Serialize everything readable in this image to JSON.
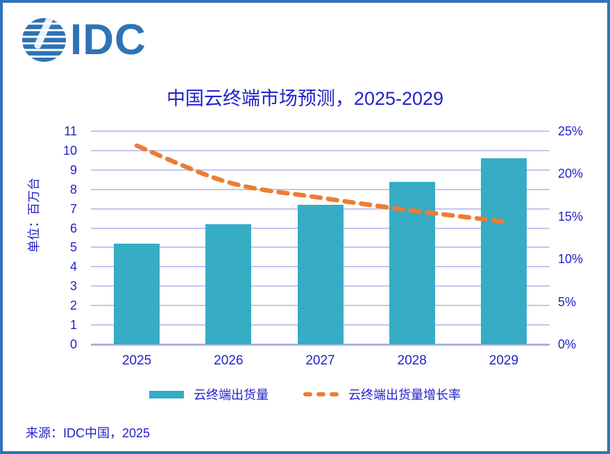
{
  "frame": {
    "border_color": "#2E74B5",
    "background": "#FFFFFF"
  },
  "logo": {
    "text": "IDC",
    "color": "#2E74B5",
    "icon": "striped-globe-icon"
  },
  "chart_data": {
    "type": "bar",
    "title": "中国云终端市场预测，2025-2029",
    "categories": [
      "2025",
      "2026",
      "2027",
      "2028",
      "2029"
    ],
    "series": [
      {
        "name": "云终端出货量",
        "type": "bar",
        "axis": "left",
        "unit": "百万台",
        "values": [
          5.2,
          6.2,
          7.2,
          8.4,
          9.6
        ],
        "color": "#36ACC5"
      },
      {
        "name": "云终端出货量增长率",
        "type": "line",
        "style": "dashed",
        "axis": "right",
        "unit": "%",
        "values": [
          23.3,
          19.0,
          17.2,
          15.7,
          14.4
        ],
        "color": "#ED7D31"
      }
    ],
    "xlabel": "",
    "ylabel_left": "单位：百万台",
    "left_axis": {
      "min": 0,
      "max": 11,
      "step": 1,
      "ticks": [
        "0",
        "1",
        "2",
        "3",
        "4",
        "5",
        "6",
        "7",
        "8",
        "9",
        "10",
        "11"
      ]
    },
    "right_axis": {
      "min": 0,
      "max": 25,
      "step": 5,
      "tick_labels": [
        "0%",
        "5%",
        "10%",
        "15%",
        "20%",
        "25%"
      ]
    },
    "grid": true,
    "gridline_color": "#C3C6F0",
    "axis_text_color": "#2121CC",
    "legend_position": "bottom"
  },
  "legend": {
    "items": [
      {
        "label": "云终端出货量",
        "swatch": "bar",
        "color": "#36ACC5"
      },
      {
        "label": "云终端出货量增长率",
        "swatch": "dashed-line",
        "color": "#ED7D31"
      }
    ]
  },
  "footer": {
    "source": "来源：IDC中国，2025"
  }
}
